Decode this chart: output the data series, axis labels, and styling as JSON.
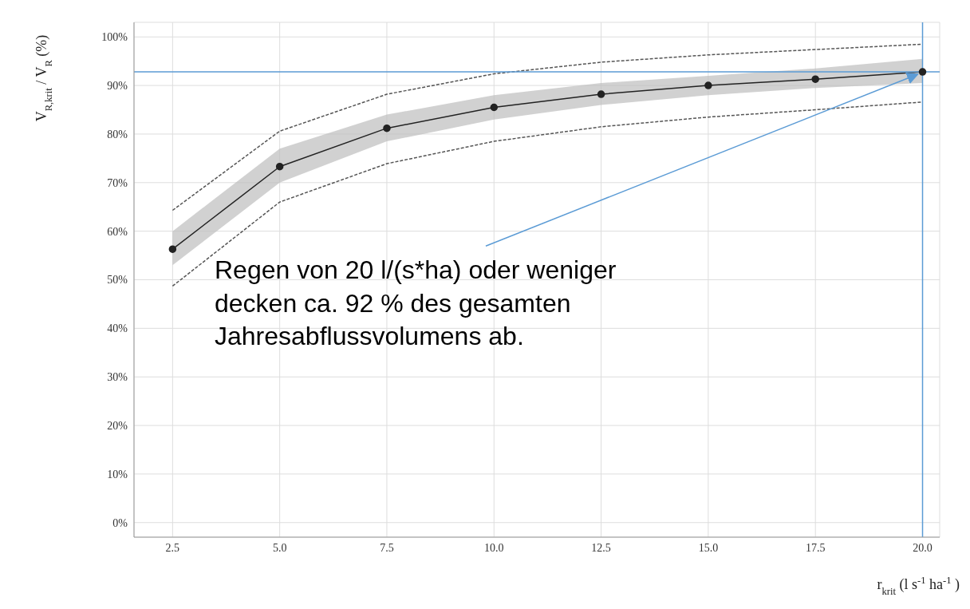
{
  "chart_data": {
    "type": "line",
    "ylabel": "V$_{R,krit}$ / V$_{R}$ (%)",
    "xlabel": "r$_{krit}$ (l s$^{-1}$ ha$^{-1}$)",
    "x": [
      2.5,
      5,
      7.5,
      10,
      12.5,
      15,
      17.5,
      20
    ],
    "xlim": [
      1.6,
      20.4
    ],
    "ylim": [
      -3,
      103
    ],
    "xticks": [
      {
        "value": 2.5,
        "label": "2.5"
      },
      {
        "value": 5,
        "label": "5.0"
      },
      {
        "value": 7.5,
        "label": "7.5"
      },
      {
        "value": 10,
        "label": "10.0"
      },
      {
        "value": 12.5,
        "label": "12.5"
      },
      {
        "value": 15,
        "label": "15.0"
      },
      {
        "value": 17.5,
        "label": "17.5"
      },
      {
        "value": 20,
        "label": "20.0"
      }
    ],
    "yticks": [
      {
        "value": 0,
        "label": "0%"
      },
      {
        "value": 10,
        "label": "10%"
      },
      {
        "value": 20,
        "label": "20%"
      },
      {
        "value": 30,
        "label": "30%"
      },
      {
        "value": 40,
        "label": "40%"
      },
      {
        "value": 50,
        "label": "50%"
      },
      {
        "value": 60,
        "label": "60%"
      },
      {
        "value": 70,
        "label": "70%"
      },
      {
        "value": 80,
        "label": "80%"
      },
      {
        "value": 90,
        "label": "90%"
      },
      {
        "value": 100,
        "label": "100%"
      }
    ],
    "grid": true,
    "legend": false,
    "series": [
      {
        "color": "#555555",
        "line_style": "dashed",
        "marker": "none",
        "values": [
          64.3,
          80.6,
          88.2,
          92.4,
          94.8,
          96.3,
          97.4,
          98.5
        ]
      },
      {
        "color": "#555555",
        "line_style": "dashed",
        "marker": "none",
        "values": [
          48.7,
          66,
          73.9,
          78.5,
          81.5,
          83.5,
          85,
          86.6
        ]
      },
      {
        "color": "#222222",
        "line_style": "solid",
        "marker": "circle",
        "values": [
          56.3,
          73.3,
          81.2,
          85.5,
          88.2,
          90,
          91.3,
          92.8
        ],
        "lower": [
          53,
          70,
          78.5,
          83,
          86,
          88,
          89.5,
          90.5
        ],
        "upper": [
          60,
          77,
          84,
          88,
          90.5,
          92,
          93.5,
          95.5
        ]
      }
    ],
    "ref_lines": [
      {
        "axis": "y",
        "value": 92.8,
        "color": "#5b9bd5"
      },
      {
        "axis": "x",
        "value": 20,
        "color": "#5b9bd5"
      }
    ],
    "annotations": [
      {
        "text": "Regen von 20 l/(s*ha) oder weniger decken ca. 92 % des gesamten Jahresabflussvolumens ab.",
        "x": 20,
        "y": 92.8
      }
    ]
  }
}
